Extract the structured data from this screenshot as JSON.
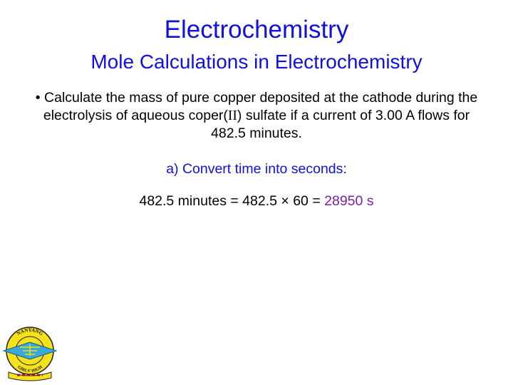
{
  "slide": {
    "title": "Electrochemistry",
    "subtitle": "Mole Calculations in Electrochemistry",
    "question": {
      "bullet": "•",
      "part1": "Calculate the mass of pure copper deposited at the cathode during the electrolysis of aqueous coper(",
      "roman": "II",
      "part2": ") sulfate if a current of 3.00 A flows for 482.5 minutes."
    },
    "step_label": "a) Convert time into seconds:",
    "calculation": {
      "expression": "482.5 minutes = 482.5 × 60 = ",
      "result": "28950 s"
    },
    "logo": {
      "top_text": "NANYANG",
      "bottom_text": "GIRLS' HIGH"
    },
    "colors": {
      "heading": "#1010e0",
      "result": "#7a1fa2"
    }
  }
}
